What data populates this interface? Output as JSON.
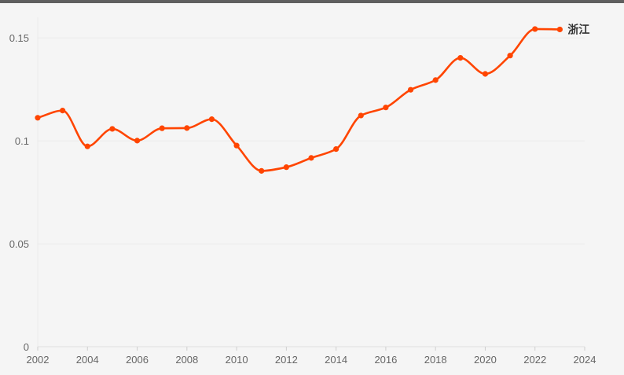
{
  "chart_data": {
    "type": "line",
    "title": "",
    "xlabel": "",
    "ylabel": "",
    "xlim": [
      2002,
      2024
    ],
    "ylim": [
      0,
      0.16
    ],
    "x_ticks": [
      "2002",
      "2004",
      "2006",
      "2008",
      "2010",
      "2012",
      "2014",
      "2016",
      "2018",
      "2020",
      "2022",
      "2024"
    ],
    "y_ticks": [
      "0",
      "0.05",
      "0.1",
      "0.15"
    ],
    "grid": true,
    "legend": "end-of-line label",
    "colors": {
      "line": "#ff4500",
      "grid": "#ebebeb",
      "background": "#f5f5f5"
    },
    "series": [
      {
        "name": "浙江",
        "x": [
          2002,
          2003,
          2004,
          2005,
          2006,
          2007,
          2008,
          2009,
          2010,
          2011,
          2012,
          2013,
          2014,
          2015,
          2016,
          2017,
          2018,
          2019,
          2020,
          2021,
          2022,
          2023
        ],
        "values": [
          0.1112,
          0.1147,
          0.0973,
          0.1058,
          0.1001,
          0.1061,
          0.1062,
          0.1105,
          0.0977,
          0.0854,
          0.0872,
          0.0917,
          0.096,
          0.1123,
          0.1162,
          0.1248,
          0.1295,
          0.1403,
          0.1325,
          0.1414,
          0.1543,
          0.1541
        ]
      }
    ]
  }
}
